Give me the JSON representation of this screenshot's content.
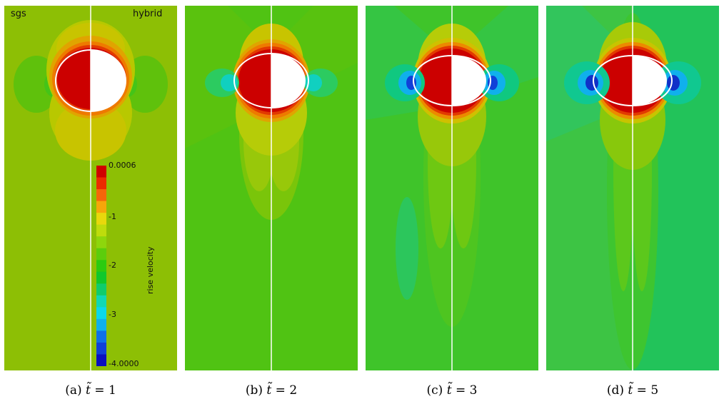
{
  "panels": [
    {
      "caption_prefix": "(a)",
      "t_value": "1",
      "bg": "#8dbf05",
      "far_field_right": "#8dbf05"
    },
    {
      "caption_prefix": "(b)",
      "t_value": "2",
      "bg": "#50c313",
      "far_field_right": "#44c41e"
    },
    {
      "caption_prefix": "(c)",
      "t_value": "3",
      "bg": "#3fc42a",
      "far_field_right": "#3cc43a"
    },
    {
      "caption_prefix": "(d)",
      "t_value": "5",
      "bg": "#3dc444",
      "far_field_right": "#22c35a"
    }
  ],
  "overlay": {
    "left_label": "sgs",
    "right_label": "hybrid"
  },
  "colorbar": {
    "title": "rise velocity",
    "ticks": [
      "0.0006",
      "-1",
      "-2",
      "-3",
      "-4.0000"
    ],
    "colors": [
      "#d00000",
      "#ec2a00",
      "#f5660a",
      "#f6a60a",
      "#e8d80c",
      "#bedc0c",
      "#8ed60c",
      "#5ccd0c",
      "#2ccb10",
      "#10c82c",
      "#10cc6c",
      "#10d8b4",
      "#0ad8ea",
      "#10b0ec",
      "#1070e8",
      "#1040d8",
      "#0a10c0"
    ],
    "min": -4.0,
    "max": 0.0006
  },
  "caption_symbol": "t̃",
  "caption_eq": "="
}
